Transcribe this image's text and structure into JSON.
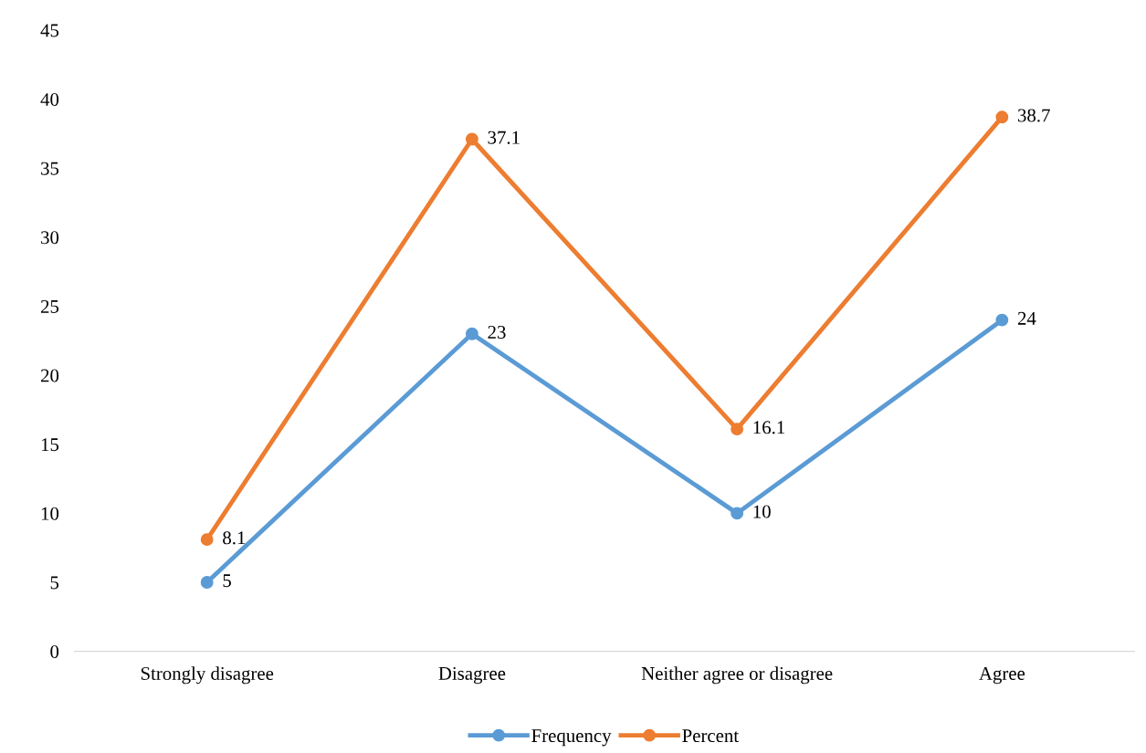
{
  "chart_data": {
    "type": "line",
    "categories": [
      "Strongly disagree",
      "Disagree",
      "Neither agree or disagree",
      "Agree"
    ],
    "series": [
      {
        "name": "Frequency",
        "color": "#5b9bd5",
        "values": [
          5,
          23,
          10,
          24
        ]
      },
      {
        "name": "Percent",
        "color": "#ed7d31",
        "values": [
          8.1,
          37.1,
          16.1,
          38.7
        ]
      }
    ],
    "ylim": [
      0,
      45
    ],
    "yticks": [
      0,
      5,
      10,
      15,
      20,
      25,
      30,
      35,
      40,
      45
    ],
    "grid": false,
    "legend": "bottom",
    "marker": "circle",
    "line_style": "solid",
    "data_labels": true
  }
}
